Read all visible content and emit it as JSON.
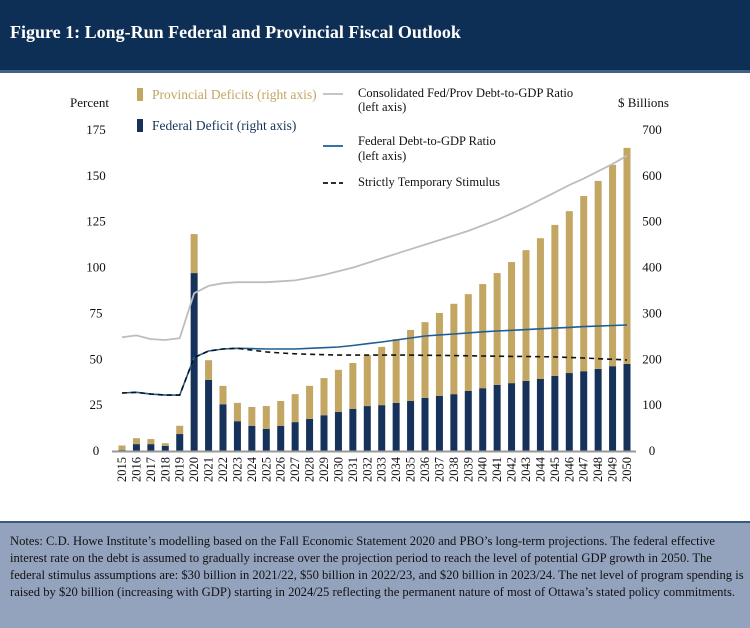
{
  "header": {
    "title": "Figure 1: Long-Run Federal and Provincial Fiscal Outlook"
  },
  "notes": {
    "text": "Notes: C.D. Howe Institute’s modelling based on the Fall Economic Statement 2020 and PBO’s long-term projections. The federal effective interest rate on the debt is assumed to gradually increase over the projection period to reach the level of potential GDP growth in 2050. The federal stimulus assumptions are: $30 billion in 2021/22, $50 billion in 2022/23, and $20 billion in 2023/24. The net level of program spending is raised by $20 billion (increasing with GDP) starting in 2024/25 reflecting the permanent nature of most of Ottawa’s stated policy commitments."
  },
  "chart_data": {
    "type": "bar+line",
    "left_axis": {
      "label": "Percent",
      "range": [
        0,
        175
      ],
      "ticks": [
        0,
        25,
        50,
        75,
        100,
        125,
        150,
        175
      ]
    },
    "right_axis": {
      "label": "$ Billions",
      "range": [
        0,
        700
      ],
      "ticks": [
        0,
        100,
        200,
        300,
        400,
        500,
        600,
        700
      ]
    },
    "categories": [
      "2015",
      "2016",
      "2017",
      "2018",
      "2019",
      "2020",
      "2021",
      "2022",
      "2023",
      "2024",
      "2025",
      "2026",
      "2027",
      "2028",
      "2029",
      "2030",
      "2031",
      "2032",
      "2033",
      "2034",
      "2035",
      "2036",
      "2037",
      "2038",
      "2039",
      "2040",
      "2041",
      "2042",
      "2043",
      "2044",
      "2045",
      "2046",
      "2047",
      "2048",
      "2049",
      "2050"
    ],
    "bar_series": [
      {
        "name": "Federal Deficit (right axis)",
        "color": "#17325a",
        "axis": "right",
        "values": [
          2,
          15,
          15,
          11,
          37,
          388,
          155,
          102,
          65,
          55,
          48,
          55,
          63,
          70,
          78,
          85,
          92,
          98,
          100,
          105,
          109,
          116,
          120,
          124,
          131,
          137,
          144,
          148,
          153,
          157,
          164,
          170,
          174,
          179,
          185,
          190
        ]
      },
      {
        "name": "Provincial Deficits (right axis)",
        "color": "#c2a661",
        "axis": "right",
        "values": [
          10,
          13,
          11,
          6,
          18,
          85,
          43,
          40,
          40,
          41,
          50,
          54,
          61,
          72,
          81,
          92,
          100,
          111,
          127,
          139,
          155,
          165,
          181,
          197,
          211,
          227,
          244,
          264,
          285,
          307,
          329,
          353,
          382,
          410,
          439,
          471
        ]
      }
    ],
    "line_series": [
      {
        "name": "Consolidated Fed/Prov Debt-to-GDP Ratio",
        "name2": "(left axis)",
        "color": "#bdbdbd",
        "dash": false,
        "axis": "left",
        "values": [
          62,
          63,
          61,
          60.5,
          61.5,
          86,
          90,
          91.5,
          92,
          92,
          92,
          92.5,
          93,
          94.5,
          96,
          98,
          100,
          102.5,
          105,
          107.5,
          110,
          112.5,
          115,
          117.5,
          120,
          123,
          126,
          129.5,
          133,
          137,
          141,
          145,
          148.5,
          152.5,
          156.5,
          161
        ]
      },
      {
        "name": "Federal Debt-to-GDP Ratio",
        "name2": "(left axis)",
        "color": "#1f5e96",
        "dash": false,
        "axis": "left",
        "values": [
          31.6,
          32,
          31,
          30.5,
          30.5,
          51,
          54.5,
          55.6,
          56,
          55.8,
          55.6,
          55.6,
          55.6,
          56,
          56.3,
          56.7,
          57.5,
          58.5,
          59.4,
          60.5,
          61.6,
          62.7,
          63.3,
          63.8,
          64.4,
          65,
          65.4,
          65.8,
          66.2,
          66.6,
          67,
          67.4,
          67.8,
          68.1,
          68.4,
          68.7
        ]
      },
      {
        "name": "Strictly Temporary Stimulus",
        "name2": "",
        "color": "#111111",
        "dash": true,
        "axis": "left",
        "values": [
          31.6,
          32,
          31,
          30.5,
          30.5,
          51,
          54.5,
          55.6,
          56,
          55,
          54,
          53.4,
          53,
          52.7,
          52.5,
          52.3,
          52.3,
          52.3,
          52.3,
          52.3,
          52.3,
          52.2,
          52.1,
          52,
          51.9,
          51.8,
          51.7,
          51.6,
          51.5,
          51.4,
          51.3,
          51,
          50.7,
          50.3,
          50,
          49.6
        ]
      }
    ],
    "grid": false,
    "legend": "top"
  }
}
